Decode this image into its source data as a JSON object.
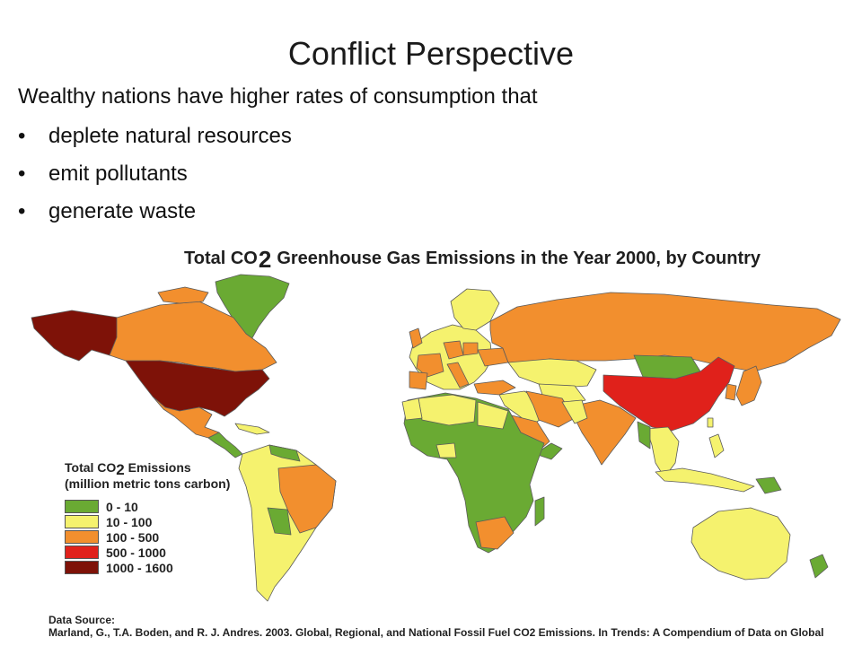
{
  "slide": {
    "title": "Conflict Perspective",
    "intro": "Wealthy nations have higher rates of consumption that",
    "bullets": [
      "deplete natural resources",
      "emit pollutants",
      "generate waste"
    ]
  },
  "map": {
    "title_pre": "Total CO",
    "title_sub": "2",
    "title_post": "Greenhouse Gas Emissions in the Year 2000, by Country",
    "legend": {
      "title_pre": "Total CO",
      "title_sub": "2",
      "title_post": " Emissions",
      "unit": "(million metric tons carbon)",
      "classes": [
        {
          "label": "0 - 10",
          "color": "#6aaa33"
        },
        {
          "label": "10 - 100",
          "color": "#f5f26e"
        },
        {
          "label": "100 - 500",
          "color": "#f28f2e"
        },
        {
          "label": "500 - 1000",
          "color": "#e0211b"
        },
        {
          "label": "1000 - 1600",
          "color": "#7e1208"
        }
      ]
    },
    "source_heading": "Data Source:",
    "source_citation": "Marland, G., T.A. Boden, and R. J. Andres. 2003. Global, Regional, and National Fossil Fuel CO2 Emissions. In Trends: A Compendium of Data on Global"
  }
}
